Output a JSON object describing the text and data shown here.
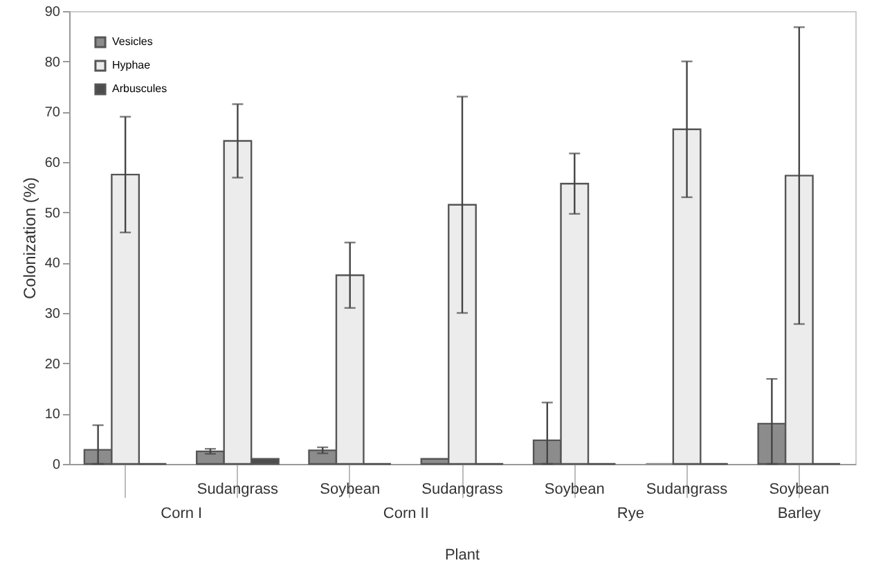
{
  "chart_data": {
    "type": "bar",
    "ylabel": "Colonization (%)",
    "xlabel": "Plant",
    "categories": [
      null,
      "Sudangrass",
      "Soybean",
      "Sudangrass",
      "Soybean",
      "Sudangrass",
      "Soybean"
    ],
    "annotations": [
      "Corn I",
      "Corn II",
      "Rye",
      "Barley"
    ],
    "series": [
      {
        "name": "Vesicles",
        "color": "#8c8c8c",
        "values": [
          2.8,
          2.5,
          2.7,
          1,
          4.7,
          0,
          8
        ],
        "errors": [
          [
            0,
            7.7
          ],
          0.5,
          0.6,
          null,
          [
            0,
            12.2
          ],
          null,
          [
            0,
            16.9
          ]
        ]
      },
      {
        "name": "Hyphae",
        "color": "#ececec",
        "values": [
          57.5,
          64.2,
          37.5,
          51.5,
          55.7,
          66.5,
          57.3
        ],
        "errors": [
          11.5,
          7.3,
          6.5,
          21.5,
          6,
          13.5,
          29.5
        ]
      },
      {
        "name": "Arbuscules",
        "color": "#4d4d4d",
        "values": [
          0,
          1,
          0,
          0,
          0,
          0,
          0
        ],
        "errors": [
          null,
          null,
          null,
          null,
          null,
          null,
          null
        ]
      }
    ],
    "ylim": [
      0,
      90
    ],
    "yticks": [
      0,
      10,
      20,
      30,
      40,
      50,
      60,
      70,
      80,
      90
    ],
    "grid": false,
    "legend": "top left"
  }
}
